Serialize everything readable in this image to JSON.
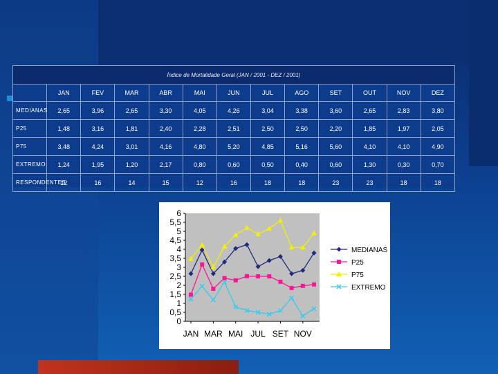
{
  "table": {
    "title": "Índice de Mortalidade Geral (JAN / 2001 - DEZ / 2001)",
    "months": [
      "JAN",
      "FEV",
      "MAR",
      "ABR",
      "MAI",
      "JUN",
      "JUL",
      "AGO",
      "SET",
      "OUT",
      "NOV",
      "DEZ"
    ],
    "rows": [
      {
        "label": "MEDIANAS",
        "values": [
          "2,65",
          "3,96",
          "2,65",
          "3,30",
          "4,05",
          "4,26",
          "3,04",
          "3,38",
          "3,60",
          "2,65",
          "2,83",
          "3,80"
        ]
      },
      {
        "label": "P25",
        "values": [
          "1,48",
          "3,16",
          "1,81",
          "2,40",
          "2,28",
          "2,51",
          "2,50",
          "2,50",
          "2,20",
          "1,85",
          "1,97",
          "2,05"
        ]
      },
      {
        "label": "P75",
        "values": [
          "3,48",
          "4,24",
          "3,01",
          "4,16",
          "4,80",
          "5,20",
          "4,85",
          "5,16",
          "5,60",
          "4,10",
          "4,10",
          "4,90"
        ]
      },
      {
        "label": "EXTREMO",
        "values": [
          "1,24",
          "1,95",
          "1,20",
          "2,17",
          "0,80",
          "0,60",
          "0,50",
          "0,40",
          "0,60",
          "1,30",
          "0,30",
          "0,70"
        ]
      },
      {
        "label": "RESPONDENTES",
        "values": [
          "12",
          "16",
          "14",
          "15",
          "12",
          "16",
          "18",
          "18",
          "23",
          "23",
          "18",
          "18"
        ]
      }
    ]
  },
  "chart_data": {
    "type": "line",
    "x": [
      "JAN",
      "FEV",
      "MAR",
      "ABR",
      "MAI",
      "JUN",
      "JUL",
      "AGO",
      "SET",
      "OUT",
      "NOV",
      "DEZ"
    ],
    "x_tick_labels": [
      "JAN",
      "MAR",
      "MAI",
      "JUL",
      "SET",
      "NOV"
    ],
    "y_ticks": [
      "0",
      "0,5",
      "1",
      "1,5",
      "2",
      "2,5",
      "3",
      "3,5",
      "4",
      "4,5",
      "5",
      "5,5",
      "6"
    ],
    "ylim": [
      0,
      6
    ],
    "grid": "none",
    "legend_position": "right",
    "series": [
      {
        "name": "MEDIANAS",
        "color": "#1f2a7a",
        "marker": "diamond",
        "values": [
          2.65,
          3.96,
          2.65,
          3.3,
          4.05,
          4.26,
          3.04,
          3.38,
          3.6,
          2.65,
          2.83,
          3.8
        ]
      },
      {
        "name": "P25",
        "color": "#ff1493",
        "marker": "square",
        "values": [
          1.48,
          3.16,
          1.81,
          2.4,
          2.28,
          2.51,
          2.5,
          2.5,
          2.2,
          1.85,
          1.97,
          2.05
        ]
      },
      {
        "name": "P75",
        "color": "#f0f000",
        "marker": "triangle",
        "values": [
          3.48,
          4.24,
          3.01,
          4.16,
          4.8,
          5.2,
          4.85,
          5.16,
          5.6,
          4.1,
          4.1,
          4.9
        ]
      },
      {
        "name": "EXTREMO",
        "color": "#33ccee",
        "marker": "x",
        "values": [
          1.24,
          1.95,
          1.2,
          2.17,
          0.8,
          0.6,
          0.5,
          0.4,
          0.6,
          1.3,
          0.3,
          0.7
        ]
      }
    ]
  }
}
